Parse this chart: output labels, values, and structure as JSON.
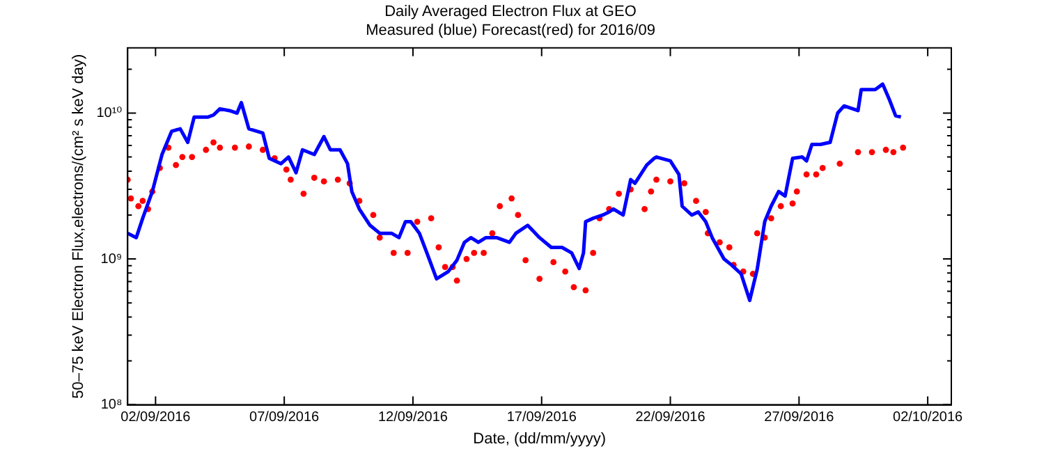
{
  "chart_data": {
    "type": "line",
    "title": "Daily Averaged Electron Flux at GEO",
    "subtitle": "Measured (blue) Forecast(red) for 2016/09",
    "xlabel": "Date, (dd/mm/yyyy)",
    "ylabel": "50–75 keV Electron Flux,electrons/(cm² s keV day)",
    "log": "y",
    "grid": false,
    "legend": false,
    "xlim": [
      "2016-08-31T22:00",
      "2016-10-02T22:00"
    ],
    "xticks": [
      {
        "value": "2016-09-02",
        "label": "02/09/2016"
      },
      {
        "value": "2016-09-07",
        "label": "07/09/2016"
      },
      {
        "value": "2016-09-12",
        "label": "12/09/2016"
      },
      {
        "value": "2016-09-17",
        "label": "17/09/2016"
      },
      {
        "value": "2016-09-22",
        "label": "22/09/2016"
      },
      {
        "value": "2016-09-27",
        "label": "27/09/2016"
      },
      {
        "value": "2016-10-02",
        "label": "02/10/2016"
      }
    ],
    "ylim": [
      100000000.0,
      28000000000.0
    ],
    "yticks": [
      {
        "value": 100000000.0,
        "label": "10⁸"
      },
      {
        "value": 200000000.0,
        "label": null
      },
      {
        "value": 300000000.0,
        "label": null
      },
      {
        "value": 400000000.0,
        "label": null
      },
      {
        "value": 500000000.0,
        "label": null
      },
      {
        "value": 600000000.0,
        "label": null
      },
      {
        "value": 700000000.0,
        "label": null
      },
      {
        "value": 800000000.0,
        "label": null
      },
      {
        "value": 900000000.0,
        "label": null
      },
      {
        "value": 1000000000.0,
        "label": "10⁹"
      },
      {
        "value": 2000000000.0,
        "label": null
      },
      {
        "value": 3000000000.0,
        "label": null
      },
      {
        "value": 4000000000.0,
        "label": null
      },
      {
        "value": 5000000000.0,
        "label": null
      },
      {
        "value": 6000000000.0,
        "label": null
      },
      {
        "value": 7000000000.0,
        "label": null
      },
      {
        "value": 8000000000.0,
        "label": null
      },
      {
        "value": 9000000000.0,
        "label": null
      },
      {
        "value": 10000000000.0,
        "label": "10¹⁰"
      },
      {
        "value": 20000000000.0,
        "label": null
      }
    ],
    "series": [
      {
        "type": "line",
        "color": "#0000ff",
        "marker": "none",
        "line_style": "solid",
        "x": [
          "2016-08-31T22:00",
          "2016-09-01T06:00",
          "2016-09-01T12:00",
          "2016-09-01T21:00",
          "2016-09-02T06:00",
          "2016-09-02T15:00",
          "2016-09-02T23:00",
          "2016-09-03T06:00",
          "2016-09-03T12:00",
          "2016-09-04T01:00",
          "2016-09-04T06:00",
          "2016-09-04T12:00",
          "2016-09-04T21:00",
          "2016-09-05T04:00",
          "2016-09-05T08:00",
          "2016-09-05T15:00",
          "2016-09-06T04:00",
          "2016-09-06T10:00",
          "2016-09-06T21:00",
          "2016-09-07T04:00",
          "2016-09-07T11:00",
          "2016-09-07T17:00",
          "2016-09-08T04:00",
          "2016-09-08T13:00",
          "2016-09-08T19:00",
          "2016-09-09T04:00",
          "2016-09-09T11:00",
          "2016-09-09T15:00",
          "2016-09-09T22:00",
          "2016-09-10T08:00",
          "2016-09-10T17:00",
          "2016-09-11T04:00",
          "2016-09-11T11:00",
          "2016-09-11T17:00",
          "2016-09-11T22:00",
          "2016-09-12T06:00",
          "2016-09-12T13:00",
          "2016-09-12T22:00",
          "2016-09-13T09:00",
          "2016-09-13T17:00",
          "2016-09-14T00:00",
          "2016-09-14T06:00",
          "2016-09-14T13:00",
          "2016-09-14T20:00",
          "2016-09-15T06:00",
          "2016-09-15T18:00",
          "2016-09-16T00:00",
          "2016-09-16T11:00",
          "2016-09-16T22:00",
          "2016-09-17T09:00",
          "2016-09-17T19:00",
          "2016-09-18T04:00",
          "2016-09-18T11:00",
          "2016-09-18T15:00",
          "2016-09-18T17:00",
          "2016-09-19T00:00",
          "2016-09-19T09:00",
          "2016-09-19T15:00",
          "2016-09-19T19:00",
          "2016-09-20T04:00",
          "2016-09-20T11:00",
          "2016-09-20T15:00",
          "2016-09-21T02:00",
          "2016-09-21T09:00",
          "2016-09-21T11:00",
          "2016-09-22T00:00",
          "2016-09-22T08:00",
          "2016-09-22T11:00",
          "2016-09-22T20:00",
          "2016-09-23T02:00",
          "2016-09-23T09:00",
          "2016-09-23T15:00",
          "2016-09-24T02:00",
          "2016-09-24T09:00",
          "2016-09-24T18:00",
          "2016-09-25T02:00",
          "2016-09-25T09:00",
          "2016-09-25T16:00",
          "2016-09-25T22:00",
          "2016-09-26T05:00",
          "2016-09-26T11:00",
          "2016-09-26T18:00",
          "2016-09-27T03:00",
          "2016-09-27T07:00",
          "2016-09-27T12:00",
          "2016-09-27T20:00",
          "2016-09-28T05:00",
          "2016-09-28T12:00",
          "2016-09-28T18:00",
          "2016-09-29T07:00",
          "2016-09-29T10:00",
          "2016-09-29T23:00",
          "2016-09-30T06:00",
          "2016-09-30T12:00",
          "2016-09-30T18:00",
          "2016-09-30T23:00"
        ],
        "values": [
          1500000000.0,
          1400000000.0,
          1900000000.0,
          2900000000.0,
          5200000000.0,
          7500000000.0,
          7800000000.0,
          6300000000.0,
          9400000000.0,
          9400000000.0,
          9700000000.0,
          10700000000.0,
          10400000000.0,
          10000000000.0,
          11800000000.0,
          7800000000.0,
          7300000000.0,
          4900000000.0,
          4500000000.0,
          5000000000.0,
          3900000000.0,
          5600000000.0,
          5200000000.0,
          6900000000.0,
          5600000000.0,
          5600000000.0,
          4500000000.0,
          2900000000.0,
          2200000000.0,
          1700000000.0,
          1500000000.0,
          1500000000.0,
          1400000000.0,
          1800000000.0,
          1800000000.0,
          1500000000.0,
          1100000000.0,
          730000000.0,
          820000000.0,
          980000000.0,
          1300000000.0,
          1400000000.0,
          1300000000.0,
          1400000000.0,
          1400000000.0,
          1300000000.0,
          1500000000.0,
          1700000000.0,
          1400000000.0,
          1200000000.0,
          1200000000.0,
          1100000000.0,
          860000000.0,
          1100000000.0,
          1800000000.0,
          1900000000.0,
          2000000000.0,
          2100000000.0,
          2200000000.0,
          2000000000.0,
          3500000000.0,
          3300000000.0,
          4400000000.0,
          4900000000.0,
          5000000000.0,
          4700000000.0,
          3800000000.0,
          2300000000.0,
          2000000000.0,
          2100000000.0,
          1800000000.0,
          1400000000.0,
          1000000000.0,
          910000000.0,
          790000000.0,
          520000000.0,
          850000000.0,
          1800000000.0,
          2300000000.0,
          2900000000.0,
          2700000000.0,
          4900000000.0,
          5000000000.0,
          4700000000.0,
          6100000000.0,
          6100000000.0,
          6300000000.0,
          10000000000.0,
          11200000000.0,
          10400000000.0,
          14500000000.0,
          14500000000.0,
          15800000000.0,
          12500000000.0,
          9600000000.0,
          9400000000.0
        ]
      },
      {
        "type": "scatter",
        "color": "#ff0000",
        "marker": "circle",
        "x": [
          "2016-08-31T22:00",
          "2016-09-01T01:00",
          "2016-09-01T08:00",
          "2016-09-01T12:00",
          "2016-09-01T17:00",
          "2016-09-01T21:00",
          "2016-09-02T04:00",
          "2016-09-02T12:00",
          "2016-09-02T19:00",
          "2016-09-03T01:00",
          "2016-09-03T10:00",
          "2016-09-03T23:00",
          "2016-09-04T06:00",
          "2016-09-04T12:00",
          "2016-09-05T02:00",
          "2016-09-05T15:00",
          "2016-09-06T04:00",
          "2016-09-06T15:00",
          "2016-09-07T02:00",
          "2016-09-07T06:00",
          "2016-09-07T18:00",
          "2016-09-08T04:00",
          "2016-09-08T13:00",
          "2016-09-09T02:00",
          "2016-09-09T13:00",
          "2016-09-09T22:00",
          "2016-09-10T11:00",
          "2016-09-10T17:00",
          "2016-09-11T06:00",
          "2016-09-11T19:00",
          "2016-09-12T04:00",
          "2016-09-12T17:00",
          "2016-09-13T00:00",
          "2016-09-13T06:00",
          "2016-09-13T13:00",
          "2016-09-13T17:00",
          "2016-09-14T02:00",
          "2016-09-14T09:00",
          "2016-09-14T18:00",
          "2016-09-15T02:00",
          "2016-09-15T09:00",
          "2016-09-15T20:00",
          "2016-09-16T02:00",
          "2016-09-16T09:00",
          "2016-09-16T22:00",
          "2016-09-17T11:00",
          "2016-09-17T22:00",
          "2016-09-18T06:00",
          "2016-09-18T17:00",
          "2016-09-19T00:00",
          "2016-09-19T06:00",
          "2016-09-19T15:00",
          "2016-09-20T00:00",
          "2016-09-20T11:00",
          "2016-09-21T00:00",
          "2016-09-21T06:00",
          "2016-09-21T11:00",
          "2016-09-22T00:00",
          "2016-09-22T13:00",
          "2016-09-23T00:00",
          "2016-09-23T09:00",
          "2016-09-23T11:00",
          "2016-09-23T22:00",
          "2016-09-24T07:00",
          "2016-09-24T11:00",
          "2016-09-24T20:00",
          "2016-09-25T05:00",
          "2016-09-25T09:00",
          "2016-09-25T16:00",
          "2016-09-25T22:00",
          "2016-09-26T07:00",
          "2016-09-26T18:00",
          "2016-09-26T22:00",
          "2016-09-27T07:00",
          "2016-09-27T16:00",
          "2016-09-27T22:00",
          "2016-09-28T14:00",
          "2016-09-29T07:00",
          "2016-09-29T20:00",
          "2016-09-30T09:00",
          "2016-09-30T16:00",
          "2016-10-01T01:00"
        ],
        "values": [
          3500000000.0,
          2600000000.0,
          2300000000.0,
          2500000000.0,
          2200000000.0,
          2900000000.0,
          4200000000.0,
          5800000000.0,
          4400000000.0,
          5000000000.0,
          5000000000.0,
          5600000000.0,
          6300000000.0,
          5800000000.0,
          5800000000.0,
          5900000000.0,
          5600000000.0,
          4900000000.0,
          4100000000.0,
          3500000000.0,
          2800000000.0,
          3600000000.0,
          3400000000.0,
          3500000000.0,
          3300000000.0,
          2500000000.0,
          2000000000.0,
          1400000000.0,
          1100000000.0,
          1100000000.0,
          1800000000.0,
          1900000000.0,
          1200000000.0,
          880000000.0,
          880000000.0,
          710000000.0,
          1000000000.0,
          1100000000.0,
          1100000000.0,
          1500000000.0,
          2300000000.0,
          2600000000.0,
          2000000000.0,
          980000000.0,
          730000000.0,
          950000000.0,
          820000000.0,
          640000000.0,
          610000000.0,
          1100000000.0,
          1900000000.0,
          2200000000.0,
          2800000000.0,
          3000000000.0,
          2200000000.0,
          2900000000.0,
          3500000000.0,
          3400000000.0,
          3300000000.0,
          2500000000.0,
          2100000000.0,
          1500000000.0,
          1300000000.0,
          1200000000.0,
          910000000.0,
          820000000.0,
          790000000.0,
          1500000000.0,
          1400000000.0,
          1900000000.0,
          2300000000.0,
          2400000000.0,
          2900000000.0,
          3800000000.0,
          3800000000.0,
          4200000000.0,
          4500000000.0,
          5400000000.0,
          5400000000.0,
          5600000000.0,
          5400000000.0,
          5800000000.0
        ]
      }
    ]
  }
}
